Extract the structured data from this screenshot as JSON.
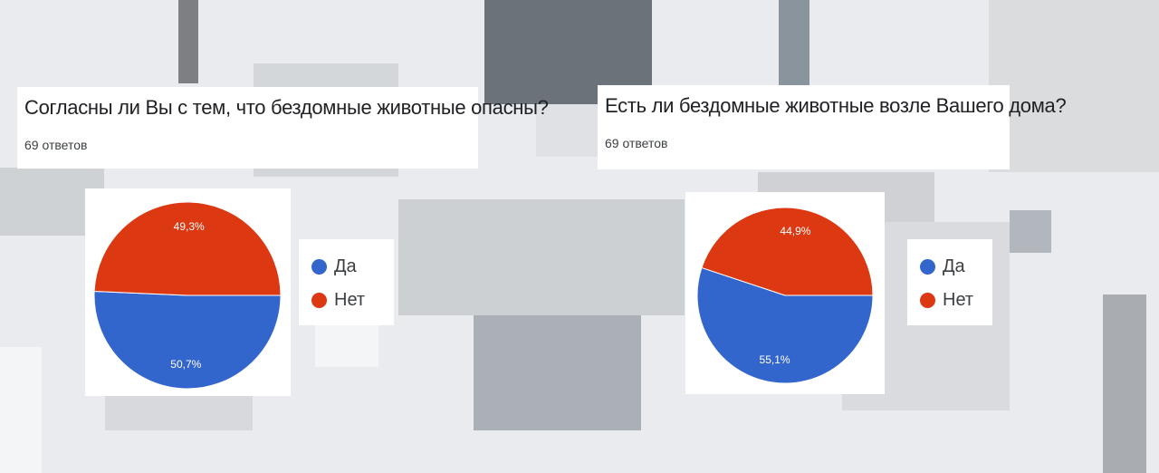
{
  "colors": {
    "yes": "#3366cc",
    "no": "#dc3912"
  },
  "chart_data": [
    {
      "type": "pie",
      "title": "Согласны ли Вы с тем, что бездомные животные опасны?",
      "subtitle": "69 ответов",
      "legend": [
        "Да",
        "Нет"
      ],
      "slices": [
        {
          "label": "Да",
          "value": 50.7,
          "display": "50,7%",
          "color": "#3366cc"
        },
        {
          "label": "Нет",
          "value": 49.3,
          "display": "49,3%",
          "color": "#dc3912"
        }
      ],
      "legend_position": "right"
    },
    {
      "type": "pie",
      "title": "Есть ли бездомные животные возле Вашего дома?",
      "subtitle": "69 ответов",
      "legend": [
        "Да",
        "Нет"
      ],
      "slices": [
        {
          "label": "Да",
          "value": 55.1,
          "display": "55,1%",
          "color": "#3366cc"
        },
        {
          "label": "Нет",
          "value": 44.9,
          "display": "44,9%",
          "color": "#dc3912"
        }
      ],
      "legend_position": "right"
    }
  ]
}
